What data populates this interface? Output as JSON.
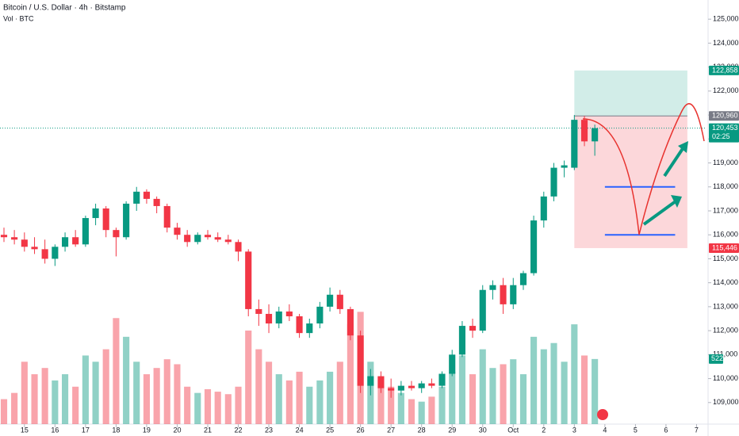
{
  "chart_data": {
    "type": "candlestick",
    "title": "Bitcoin / U.S. Dollar · 4h · Bitstamp",
    "subtitle": "Vol · BTC",
    "up_color": "#089981",
    "down_color": "#f23645",
    "x": [
      14.33,
      14.67,
      15.0,
      15.33,
      15.67,
      16.0,
      16.33,
      16.67,
      17.0,
      17.33,
      17.67,
      18.0,
      18.33,
      18.67,
      19.0,
      19.33,
      19.67,
      20.0,
      20.33,
      20.67,
      21.0,
      21.33,
      21.67,
      22.0,
      22.33,
      22.67,
      23.0,
      23.33,
      23.67,
      24.0,
      24.33,
      24.67,
      25.0,
      25.33,
      25.67,
      26.0,
      26.33,
      26.67,
      27.0,
      27.33,
      27.67,
      28.0,
      28.33,
      28.67,
      29.0,
      29.33,
      29.67,
      30.0,
      30.33,
      30.67,
      31.0,
      31.33,
      31.67,
      32.0,
      32.33,
      32.67,
      33.0,
      33.33,
      33.67
    ],
    "open": [
      116000,
      115900,
      115800,
      115500,
      115400,
      115000,
      115500,
      115900,
      115600,
      116700,
      117100,
      116200,
      115900,
      117300,
      117800,
      117500,
      117200,
      116300,
      116000,
      115700,
      116000,
      115900,
      115800,
      115700,
      115300,
      112900,
      112700,
      112300,
      112800,
      112600,
      111900,
      112300,
      113000,
      113500,
      112900,
      111800,
      109700,
      110100,
      109600,
      109500,
      109700,
      109600,
      109800,
      109700,
      110200,
      111000,
      112200,
      112000,
      113700,
      113900,
      113100,
      113900,
      114400,
      116600,
      117600,
      118800,
      118800,
      120800,
      119900
    ],
    "high": [
      116300,
      116200,
      116100,
      115900,
      115800,
      115600,
      116100,
      116200,
      116800,
      117300,
      117200,
      116300,
      117400,
      118000,
      117900,
      117600,
      117300,
      116500,
      116200,
      116100,
      116200,
      116100,
      116000,
      115800,
      115400,
      113300,
      113100,
      113000,
      113100,
      112700,
      112500,
      113200,
      113800,
      113700,
      113000,
      112000,
      110400,
      110300,
      110000,
      109900,
      109900,
      109900,
      110000,
      110300,
      111200,
      112400,
      112500,
      113900,
      114100,
      114200,
      114200,
      114500,
      116800,
      117800,
      119000,
      119100,
      121000,
      120960,
      120600
    ],
    "low": [
      115700,
      115600,
      115300,
      115200,
      114800,
      114700,
      115300,
      115500,
      115500,
      116400,
      115900,
      115100,
      115800,
      117000,
      117300,
      116900,
      116100,
      115800,
      115500,
      115600,
      115800,
      115700,
      115600,
      114900,
      112600,
      112200,
      111900,
      112100,
      112400,
      111700,
      111700,
      112100,
      112800,
      112700,
      111600,
      109400,
      109300,
      109400,
      109200,
      109300,
      109500,
      109400,
      109600,
      109600,
      110100,
      110900,
      111700,
      111900,
      113300,
      112700,
      112900,
      113700,
      114300,
      116300,
      117400,
      118400,
      118700,
      119700,
      119300
    ],
    "close": [
      115900,
      115800,
      115500,
      115400,
      115000,
      115500,
      115900,
      115600,
      116700,
      117100,
      116200,
      115900,
      117300,
      117800,
      117500,
      117200,
      116300,
      116000,
      115700,
      116000,
      115900,
      115800,
      115700,
      115300,
      112900,
      112700,
      112300,
      112800,
      112600,
      111900,
      112300,
      113000,
      113500,
      112900,
      111800,
      109700,
      110100,
      109600,
      109500,
      109700,
      109600,
      109800,
      109700,
      110200,
      111000,
      112200,
      112000,
      113700,
      113900,
      113100,
      113900,
      114400,
      116600,
      117600,
      118800,
      118900,
      120800,
      119900,
      120453
    ],
    "volume": [
      200,
      250,
      500,
      400,
      450,
      350,
      400,
      300,
      550,
      500,
      600,
      850,
      700,
      500,
      400,
      450,
      520,
      480,
      300,
      250,
      280,
      260,
      240,
      300,
      750,
      600,
      500,
      400,
      350,
      420,
      300,
      350,
      420,
      500,
      800,
      900,
      500,
      380,
      300,
      250,
      200,
      180,
      220,
      300,
      420,
      550,
      400,
      600,
      450,
      480,
      520,
      400,
      700,
      600,
      650,
      500,
      800,
      550,
      522
    ],
    "xlim": [
      14.2,
      37.3
    ],
    "ylim": [
      108100,
      125800
    ],
    "volume_lim": [
      0,
      3400
    ],
    "xticks": [
      15,
      16,
      17,
      18,
      19,
      20,
      21,
      22,
      23,
      24,
      25,
      26,
      27,
      28,
      29,
      30,
      {
        "value": 31,
        "label": "Oct"
      },
      {
        "value": 32,
        "label": "2"
      },
      {
        "value": 33,
        "label": "3"
      },
      {
        "value": 34,
        "label": "4"
      },
      {
        "value": 35,
        "label": "5"
      },
      {
        "value": 36,
        "label": "6"
      },
      {
        "value": 37,
        "label": "7"
      }
    ],
    "yticks": [
      {
        "value": 109000,
        "label": "109,000"
      },
      {
        "value": 110000,
        "label": "110,000"
      },
      {
        "value": 111000,
        "label": "111,000"
      },
      {
        "value": 112000,
        "label": "112,000"
      },
      {
        "value": 113000,
        "label": "113,000"
      },
      {
        "value": 114000,
        "label": "114,000"
      },
      {
        "value": 115000,
        "label": "115,000"
      },
      {
        "value": 116000,
        "label": "116,000"
      },
      {
        "value": 117000,
        "label": "117,000"
      },
      {
        "value": 118000,
        "label": "118,000"
      },
      {
        "value": 119000,
        "label": "119,000"
      },
      {
        "value": 120000,
        "label": "120,000"
      },
      {
        "value": 121000,
        "label": "121,000"
      },
      {
        "value": 122000,
        "label": "122,000"
      },
      {
        "value": 123000,
        "label": "123,000"
      },
      {
        "value": 124000,
        "label": "124,000"
      },
      {
        "value": 125000,
        "label": "125,000"
      }
    ],
    "position": {
      "x_start": 33.0,
      "x_end": 36.7,
      "entry": 120960,
      "target": 122858,
      "stop": 115446
    },
    "levels": [
      {
        "x_start": 34.0,
        "x_end": 36.3,
        "value": 118000
      },
      {
        "x_start": 34.0,
        "x_end": 36.3,
        "value": 116000
      }
    ],
    "last_price": 120453,
    "countdown": "02:25",
    "price_tags": [
      {
        "value": 122858,
        "label": "122,858",
        "color": "#089981"
      },
      {
        "value": 120960,
        "label": "120,960",
        "color": "#787b86"
      },
      {
        "value": 120453,
        "label": "120,453",
        "color": "#089981"
      },
      {
        "value": 115446,
        "label": "115,446",
        "color": "#f23645"
      }
    ],
    "volume_tag": {
      "value": 522,
      "label": "522",
      "color": "#089981"
    }
  }
}
